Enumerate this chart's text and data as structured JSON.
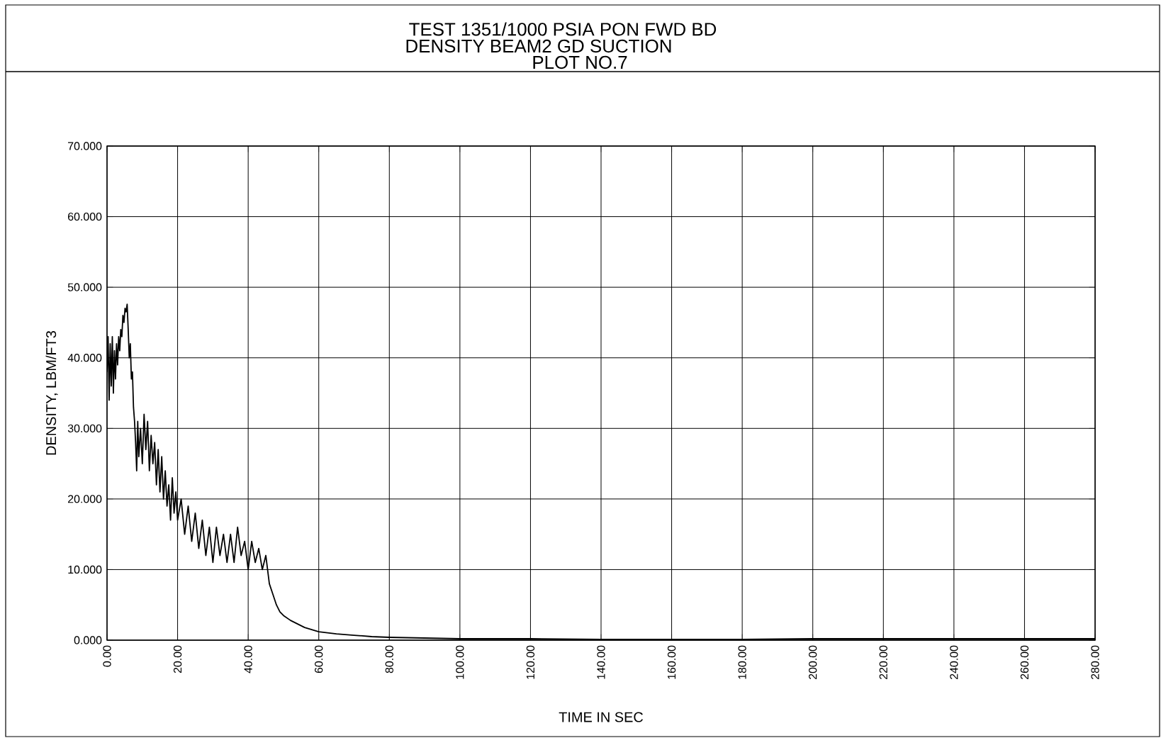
{
  "chart_data": {
    "type": "line",
    "title": "TEST 1351/1000 PSIA PON FWD BD",
    "subtitle": "DENSITY BEAM2 GD SUCTION",
    "annotations": [
      "PLOT NO.7"
    ],
    "xlabel": "TIME IN SEC",
    "ylabel": "DENSITY, LBM/FT3",
    "x": [
      0,
      0.3,
      0.6,
      0.9,
      1.2,
      1.5,
      1.8,
      2.1,
      2.4,
      2.7,
      3,
      3.3,
      3.6,
      3.9,
      4.2,
      4.5,
      4.8,
      5.1,
      5.4,
      5.7,
      6,
      6.3,
      6.6,
      6.9,
      7.2,
      7.5,
      7.8,
      8.1,
      8.4,
      8.7,
      9,
      9.5,
      10,
      10.5,
      11,
      11.5,
      12,
      12.5,
      13,
      13.5,
      14,
      14.5,
      15,
      15.5,
      16,
      16.5,
      17,
      17.5,
      18,
      18.5,
      19,
      19.5,
      20,
      21,
      22,
      23,
      24,
      25,
      26,
      27,
      28,
      29,
      30,
      31,
      32,
      33,
      34,
      35,
      36,
      37,
      38,
      39,
      40,
      41,
      42,
      43,
      44,
      45,
      46,
      47,
      48,
      49,
      50,
      52,
      54,
      56,
      58,
      60,
      65,
      70,
      75,
      80,
      90,
      100,
      110,
      120,
      140,
      160,
      180,
      200,
      220,
      240,
      260,
      280
    ],
    "series": [
      {
        "color": "#000000",
        "values": [
          38,
          43,
          34,
          42,
          36,
          43,
          35,
          41,
          37,
          42,
          39,
          43,
          41,
          44,
          43,
          46,
          45,
          47,
          46.5,
          47.6,
          44,
          40,
          42,
          37,
          38,
          33,
          31,
          28,
          24,
          31,
          26,
          30,
          25,
          32,
          27,
          31,
          24,
          29,
          25,
          28,
          22,
          27,
          21,
          26,
          20,
          24,
          19,
          22,
          17,
          23,
          18,
          21,
          17,
          20,
          15,
          19,
          14,
          18,
          13,
          17,
          12,
          16,
          11,
          16,
          12,
          15,
          11,
          15,
          11,
          16,
          12,
          14,
          10,
          14,
          11,
          13,
          10,
          12,
          8,
          6.5,
          5,
          4,
          3.5,
          2.8,
          2.3,
          1.8,
          1.5,
          1.2,
          0.9,
          0.7,
          0.5,
          0.4,
          0.3,
          0.2,
          0.2,
          0.2,
          0.1,
          0.1,
          0.1,
          0.2,
          0.2,
          0.2,
          0.2,
          0.2
        ]
      }
    ],
    "xlim": [
      0,
      280
    ],
    "ylim": [
      0,
      70
    ],
    "xticks": [
      {
        "value": 0,
        "label": "0.00"
      },
      {
        "value": 20,
        "label": "20.00"
      },
      {
        "value": 40,
        "label": "40.00"
      },
      {
        "value": 60,
        "label": "60.00"
      },
      {
        "value": 80,
        "label": "80.00"
      },
      {
        "value": 100,
        "label": "100.00"
      },
      {
        "value": 120,
        "label": "120.00"
      },
      {
        "value": 140,
        "label": "140.00"
      },
      {
        "value": 160,
        "label": "160.00"
      },
      {
        "value": 180,
        "label": "180.00"
      },
      {
        "value": 200,
        "label": "200.00"
      },
      {
        "value": 220,
        "label": "220.00"
      },
      {
        "value": 240,
        "label": "240.00"
      },
      {
        "value": 260,
        "label": "260.00"
      },
      {
        "value": 280,
        "label": "280.00"
      }
    ],
    "yticks": [
      {
        "value": 0,
        "label": "0.000"
      },
      {
        "value": 10,
        "label": "10.000"
      },
      {
        "value": 20,
        "label": "20.000"
      },
      {
        "value": 30,
        "label": "30.000"
      },
      {
        "value": 40,
        "label": "40.000"
      },
      {
        "value": 50,
        "label": "50.000"
      },
      {
        "value": 60,
        "label": "60.000"
      },
      {
        "value": 70,
        "label": "70.000"
      }
    ],
    "grid": true,
    "marker": "none",
    "line_style": "solid"
  }
}
